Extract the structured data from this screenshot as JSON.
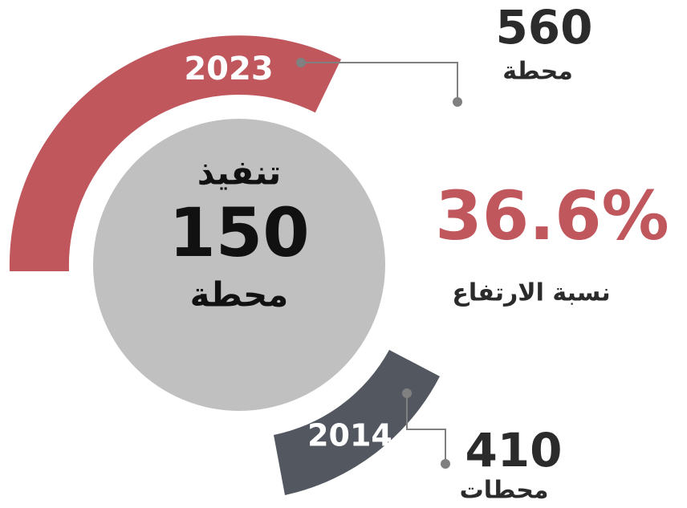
{
  "center": {
    "label": "تنفيذ",
    "value": "150",
    "unit": "محطة"
  },
  "year_2023": {
    "year": "2023",
    "value": "560",
    "unit": "محطة"
  },
  "year_2014": {
    "year": "2014",
    "value": "410",
    "unit": "محطات"
  },
  "growth": {
    "value": "36.6%",
    "label": "نسبة الارتفاع"
  }
}
